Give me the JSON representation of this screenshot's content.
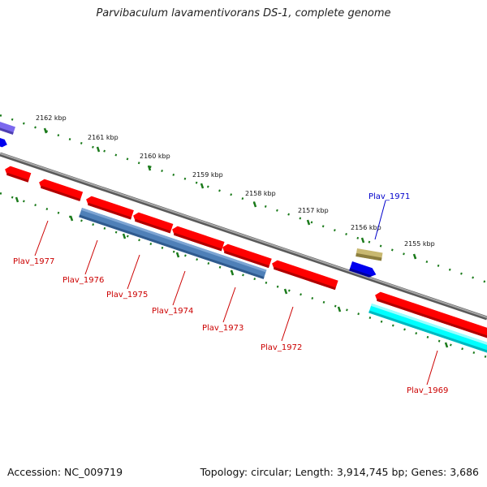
{
  "title": "Parvibaculum lavamentivorans DS-1, complete genome",
  "footer": {
    "accession": "Accession: NC_009719",
    "stats": "Topology: circular; Length: 3,914,745 bp; Genes: 3,686"
  },
  "colors": {
    "backbone": "#808080",
    "tick": "#1a7a1a",
    "reverse_gene": "#ff0000",
    "reverse_label": "#cc0000",
    "forward_gene": "#0000ee",
    "forward_label": "#0000cc",
    "blue_gene": "#4f80b8",
    "cyan_gene": "#00ffff",
    "olive_gene": "#c8b870",
    "violet_gene": "#7b68ee"
  },
  "scale_labels": [
    "2162 kbp",
    "2161 kbp",
    "2160 kbp",
    "2159 kbp",
    "2158 kbp",
    "2157 kbp",
    "2156 kbp",
    "2155 kbp"
  ],
  "genes": [
    {
      "name": "Plav_1977",
      "strand": "reverse",
      "color": "red"
    },
    {
      "name": "Plav_1976",
      "strand": "reverse",
      "color": "red"
    },
    {
      "name": "Plav_1975",
      "strand": "reverse",
      "color": "red"
    },
    {
      "name": "Plav_1974",
      "strand": "reverse",
      "color": "red"
    },
    {
      "name": "Plav_1973",
      "strand": "reverse",
      "color": "red"
    },
    {
      "name": "Plav_1972",
      "strand": "reverse",
      "color": "red"
    },
    {
      "name": "Plav_1971",
      "strand": "forward",
      "color": "blue"
    },
    {
      "name": "Plav_1969",
      "strand": "reverse",
      "color": "cyan"
    }
  ]
}
